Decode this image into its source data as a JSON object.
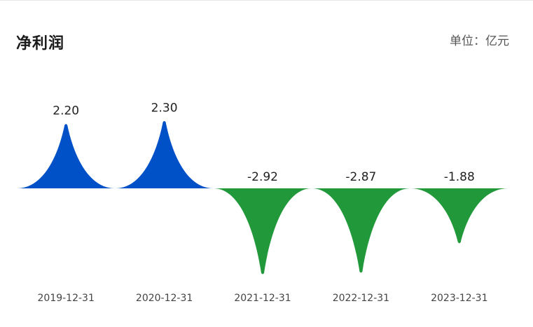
{
  "header": {
    "title": "净利润",
    "unit": "单位：亿元"
  },
  "colors": {
    "positive": "#0050c8",
    "negative": "#21993a"
  },
  "chart_data": {
    "type": "bar",
    "shape": "peak",
    "categories": [
      "2019-12-31",
      "2020-12-31",
      "2021-12-31",
      "2022-12-31",
      "2023-12-31"
    ],
    "values": [
      2.2,
      2.3,
      -2.92,
      -2.87,
      -1.88
    ],
    "labels": [
      "2.20",
      "2.30",
      "-2.92",
      "-2.87",
      "-1.88"
    ],
    "title": "净利润",
    "unit": "单位：亿元",
    "grid": false,
    "legend": false
  }
}
